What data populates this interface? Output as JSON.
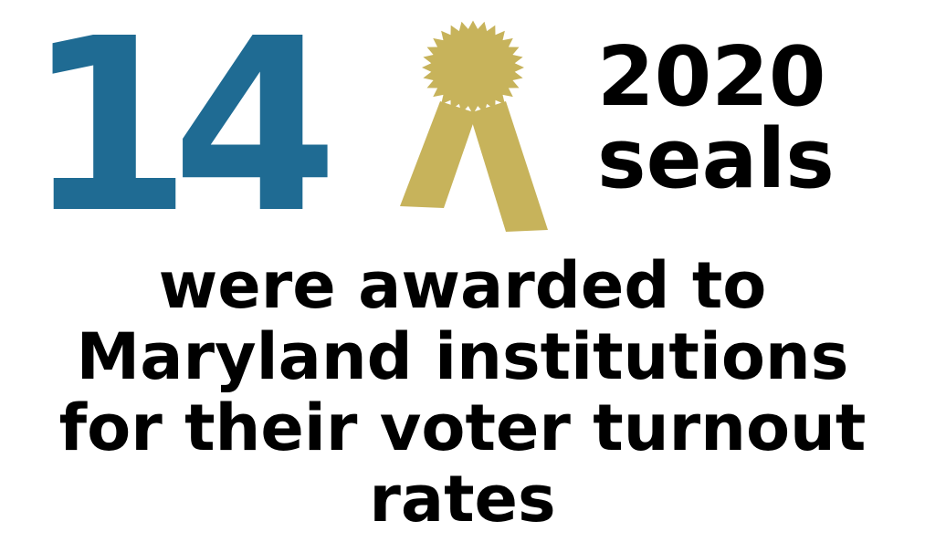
{
  "headline": {
    "number": "14",
    "number_color": "#1f6b93",
    "year": "2020",
    "unit": "seals"
  },
  "seal": {
    "icon": "award-ribbon-icon",
    "color": "#c7b35b"
  },
  "caption": {
    "lines": [
      "were awarded to",
      "Maryland institutions",
      "for their voter turnout",
      "rates"
    ]
  }
}
